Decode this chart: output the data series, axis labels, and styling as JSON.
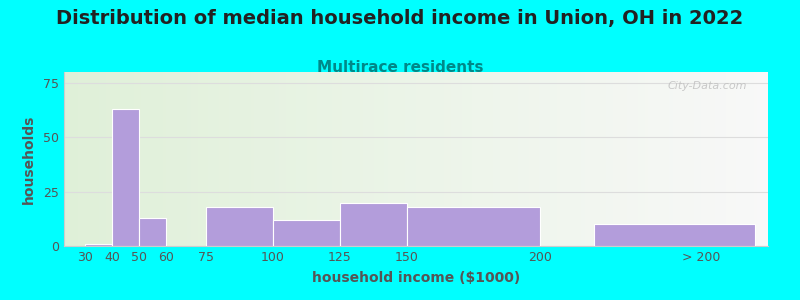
{
  "title": "Distribution of median household income in Union, OH in 2022",
  "subtitle": "Multirace residents",
  "xlabel": "household income ($1000)",
  "ylabel": "households",
  "fig_bg_color": "#00FFFF",
  "plot_bg_left": "#dff0d8",
  "plot_bg_right": "#f8f8f8",
  "bar_color": "#b39ddb",
  "bar_edgecolor": "#ffffff",
  "title_color": "#222222",
  "subtitle_color": "#008888",
  "axis_label_color": "#555555",
  "tick_color": "#555555",
  "grid_color": "#dddddd",
  "watermark_color": "#c0c0c0",
  "categories": [
    "30",
    "40",
    "50",
    "60",
    "75",
    "100",
    "125",
    "150",
    "200",
    "> 200"
  ],
  "bar_lefts": [
    30,
    40,
    50,
    60,
    75,
    100,
    125,
    150,
    200,
    220
  ],
  "bar_rights": [
    40,
    50,
    60,
    75,
    100,
    125,
    150,
    200,
    220,
    280
  ],
  "bar_heights": [
    1,
    63,
    13,
    0,
    18,
    12,
    20,
    18,
    0,
    10
  ],
  "xtick_pos": [
    30,
    40,
    50,
    60,
    75,
    100,
    125,
    150,
    200,
    260
  ],
  "xlim": [
    22,
    285
  ],
  "yticks": [
    0,
    25,
    50,
    75
  ],
  "ylim": [
    0,
    80
  ],
  "watermark": "City-Data.com",
  "title_fontsize": 14,
  "subtitle_fontsize": 11,
  "axis_label_fontsize": 10,
  "tick_fontsize": 9
}
